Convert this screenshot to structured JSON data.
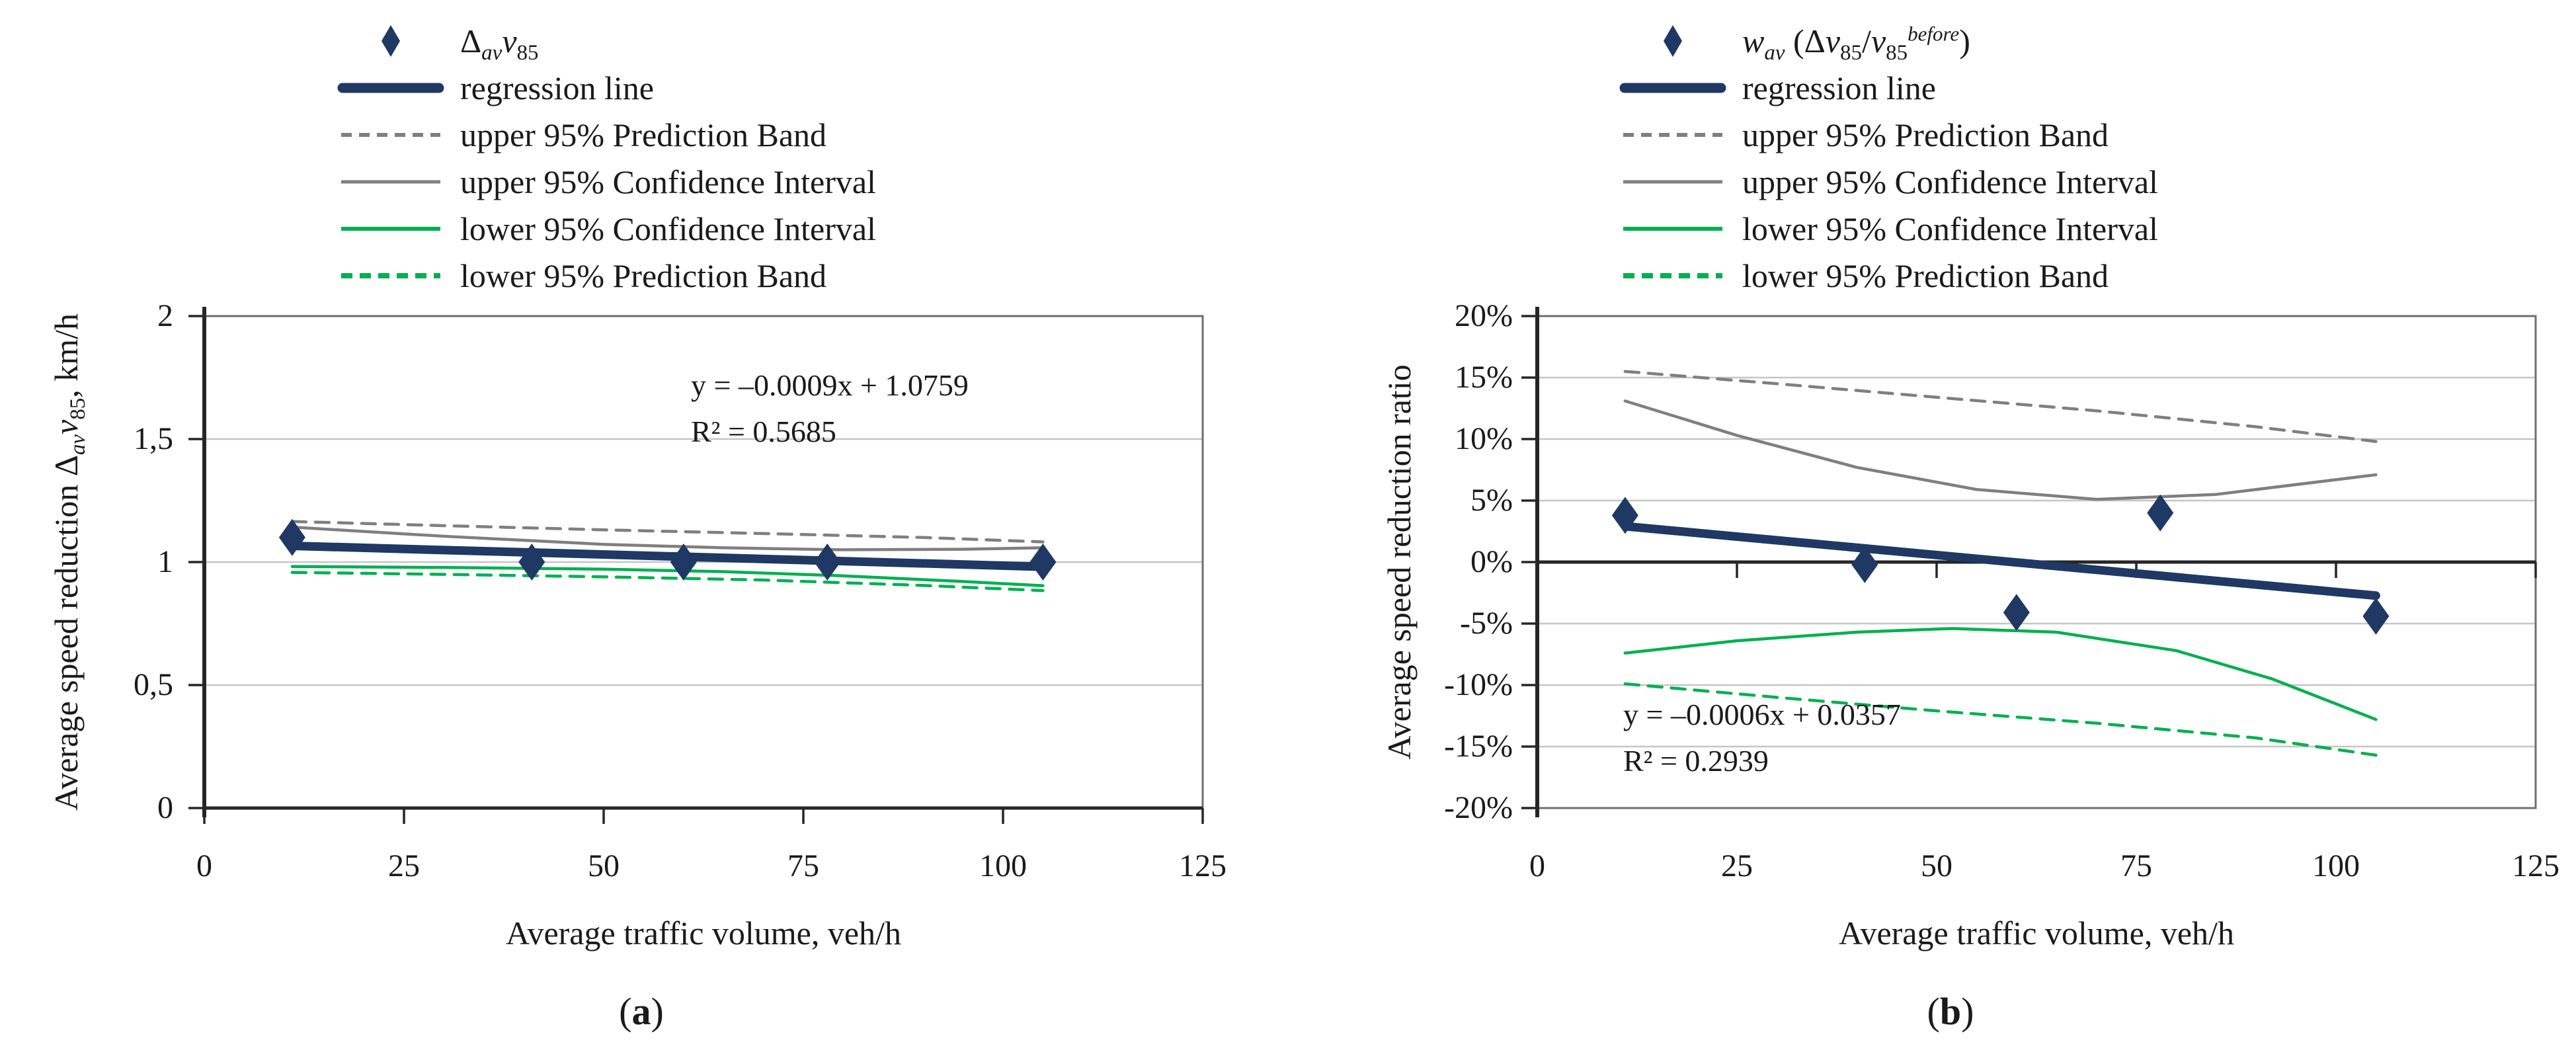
{
  "colors": {
    "navy": "#1F3864",
    "gray": "#7F7F7F",
    "green": "#00B050",
    "gridline": "#C6C6C6",
    "frame": "#6E6E6E",
    "axis": "#262626",
    "text": "#1A1A1A"
  },
  "panel_a": {
    "legend": {
      "scatter": {
        "p1": "Δ",
        "sub1": "av",
        "v": "v",
        "sub2": "85"
      },
      "regression": "regression line",
      "upper_pb": "upper 95% Prediction Band",
      "upper_ci": "upper 95% Confidence Interval",
      "lower_ci": "lower 95% Confidence Interval",
      "lower_pb": "lower 95% Prediction Band"
    },
    "equation_line1": "y = –0.0009x + 1.0759",
    "equation_line2": "R² = 0.5685",
    "y_axis_title": {
      "p1": "Average speed reduction Δ",
      "sub1": "av",
      "v": "v",
      "sub2": "85",
      "p2": ", km/h"
    },
    "x_axis_title": "Average traffic volume, veh/h",
    "y_tick_labels": [
      "2",
      "1,5",
      "1",
      "0,5",
      "0"
    ],
    "x_tick_labels": [
      "0",
      "25",
      "50",
      "75",
      "100",
      "125"
    ],
    "caption_open": "(",
    "caption_letter": "a",
    "caption_close": ")"
  },
  "panel_b": {
    "legend": {
      "scatter": {
        "w": "w",
        "subw": "av",
        "open": " (Δ",
        "v1": "v",
        "sub1": "85",
        "slash": "/",
        "v2": "v",
        "sub2": "85",
        "sup": "before",
        "close": ")"
      },
      "regression": "regression line",
      "upper_pb": "upper 95% Prediction Band",
      "upper_ci": "upper 95% Confidence Interval",
      "lower_ci": "lower 95% Confidence Interval",
      "lower_pb": "lower 95% Prediction Band"
    },
    "equation_line1": "y = –0.0006x + 0.0357",
    "equation_line2": "R² = 0.2939",
    "y_axis_title": {
      "p1": "Average speed reduction ratio"
    },
    "x_axis_title": "Average traffic volume, veh/h",
    "y_tick_labels": [
      "20%",
      "15%",
      "10%",
      "5%",
      "0%",
      "-5%",
      "-10%",
      "-15%",
      "-20%"
    ],
    "x_tick_labels": [
      "0",
      "25",
      "50",
      "75",
      "100",
      "125"
    ],
    "caption_open": "(",
    "caption_letter": "b",
    "caption_close": ")"
  },
  "chart_data": [
    {
      "type": "scatter",
      "panel": "a",
      "title": "(a)",
      "xlabel": "Average traffic volume, veh/h",
      "ylabel": "Average speed reduction Δav v85, km/h",
      "xlim": [
        0,
        125
      ],
      "ylim": [
        0,
        2
      ],
      "x_ticks": [
        0,
        25,
        50,
        75,
        100,
        125
      ],
      "y_ticks": [
        0,
        0.5,
        1,
        1.5,
        2
      ],
      "x_axis_at": 0,
      "grid": true,
      "legend_position": "top-left",
      "equation": "y = –0.0009x + 1.0759",
      "r_squared": 0.5685,
      "series": [
        {
          "name": "Δav v85",
          "kind": "scatter",
          "color": "navy",
          "points": [
            [
              11,
              1.1
            ],
            [
              41,
              1.0
            ],
            [
              60,
              1.0
            ],
            [
              78,
              1.0
            ],
            [
              105,
              1.0
            ]
          ]
        },
        {
          "name": "regression line",
          "kind": "line",
          "color": "navy",
          "width": 13,
          "dash": null,
          "points": [
            [
              11,
              1.066
            ],
            [
              105,
              0.981
            ]
          ]
        },
        {
          "name": "upper 95% Prediction Band",
          "kind": "line",
          "color": "gray",
          "width": 4.5,
          "dash": "21 14",
          "points": [
            [
              11,
              1.165
            ],
            [
              30,
              1.148
            ],
            [
              50,
              1.131
            ],
            [
              70,
              1.116
            ],
            [
              90,
              1.1
            ],
            [
              105,
              1.082
            ]
          ]
        },
        {
          "name": "upper 95% Confidence Interval",
          "kind": "line",
          "color": "gray",
          "width": 4.5,
          "dash": null,
          "points": [
            [
              11,
              1.142
            ],
            [
              30,
              1.105
            ],
            [
              50,
              1.072
            ],
            [
              65,
              1.058
            ],
            [
              80,
              1.05
            ],
            [
              95,
              1.052
            ],
            [
              105,
              1.058
            ]
          ]
        },
        {
          "name": "lower 95% Confidence Interval",
          "kind": "line",
          "color": "green",
          "width": 4.5,
          "dash": null,
          "points": [
            [
              11,
              0.982
            ],
            [
              30,
              0.978
            ],
            [
              50,
              0.971
            ],
            [
              65,
              0.961
            ],
            [
              80,
              0.944
            ],
            [
              95,
              0.921
            ],
            [
              105,
              0.904
            ]
          ]
        },
        {
          "name": "lower 95% Prediction Band",
          "kind": "line",
          "color": "green",
          "width": 4.5,
          "dash": "21 14",
          "points": [
            [
              11,
              0.958
            ],
            [
              30,
              0.95
            ],
            [
              50,
              0.94
            ],
            [
              70,
              0.927
            ],
            [
              90,
              0.905
            ],
            [
              105,
              0.884
            ]
          ]
        }
      ]
    },
    {
      "type": "scatter",
      "panel": "b",
      "title": "(b)",
      "xlabel": "Average traffic volume, veh/h",
      "ylabel": "Average speed reduction ratio",
      "xlim": [
        0,
        125
      ],
      "ylim": [
        -0.2,
        0.2
      ],
      "x_ticks": [
        0,
        25,
        50,
        75,
        100,
        125
      ],
      "y_ticks": [
        -0.2,
        -0.15,
        -0.1,
        -0.05,
        0,
        0.05,
        0.1,
        0.15,
        0.2
      ],
      "x_axis_at": 0,
      "grid": true,
      "legend_position": "top-left",
      "equation": "y = –0.0006x + 0.0357",
      "r_squared": 0.2939,
      "series": [
        {
          "name": "wav (Δv85/v85 before)",
          "kind": "scatter",
          "color": "navy",
          "points": [
            [
              11,
              0.038
            ],
            [
              41,
              -0.002
            ],
            [
              60,
              -0.041
            ],
            [
              78,
              0.04
            ],
            [
              105,
              -0.044
            ]
          ]
        },
        {
          "name": "regression line",
          "kind": "line",
          "color": "navy",
          "width": 13,
          "dash": null,
          "points": [
            [
              11,
              0.0291
            ],
            [
              105,
              -0.0273
            ]
          ]
        },
        {
          "name": "upper 95% Prediction Band",
          "kind": "line",
          "color": "gray",
          "width": 4.5,
          "dash": "21 14",
          "points": [
            [
              11,
              0.155
            ],
            [
              30,
              0.145
            ],
            [
              50,
              0.134
            ],
            [
              70,
              0.123
            ],
            [
              90,
              0.11
            ],
            [
              105,
              0.098
            ]
          ]
        },
        {
          "name": "upper 95% Confidence Interval",
          "kind": "line",
          "color": "gray",
          "width": 4.5,
          "dash": null,
          "points": [
            [
              11,
              0.131
            ],
            [
              25,
              0.103
            ],
            [
              40,
              0.077
            ],
            [
              55,
              0.059
            ],
            [
              70,
              0.051
            ],
            [
              85,
              0.055
            ],
            [
              105,
              0.071
            ]
          ]
        },
        {
          "name": "lower 95% Confidence Interval",
          "kind": "line",
          "color": "green",
          "width": 4.5,
          "dash": null,
          "points": [
            [
              11,
              -0.074
            ],
            [
              25,
              -0.064
            ],
            [
              40,
              -0.057
            ],
            [
              52,
              -0.054
            ],
            [
              65,
              -0.057
            ],
            [
              80,
              -0.072
            ],
            [
              92,
              -0.095
            ],
            [
              105,
              -0.128
            ]
          ]
        },
        {
          "name": "lower 95% Prediction Band",
          "kind": "line",
          "color": "green",
          "width": 4.5,
          "dash": "21 14",
          "points": [
            [
              11,
              -0.099
            ],
            [
              30,
              -0.11
            ],
            [
              50,
              -0.121
            ],
            [
              70,
              -0.131
            ],
            [
              90,
              -0.143
            ],
            [
              105,
              -0.157
            ]
          ]
        }
      ]
    }
  ]
}
